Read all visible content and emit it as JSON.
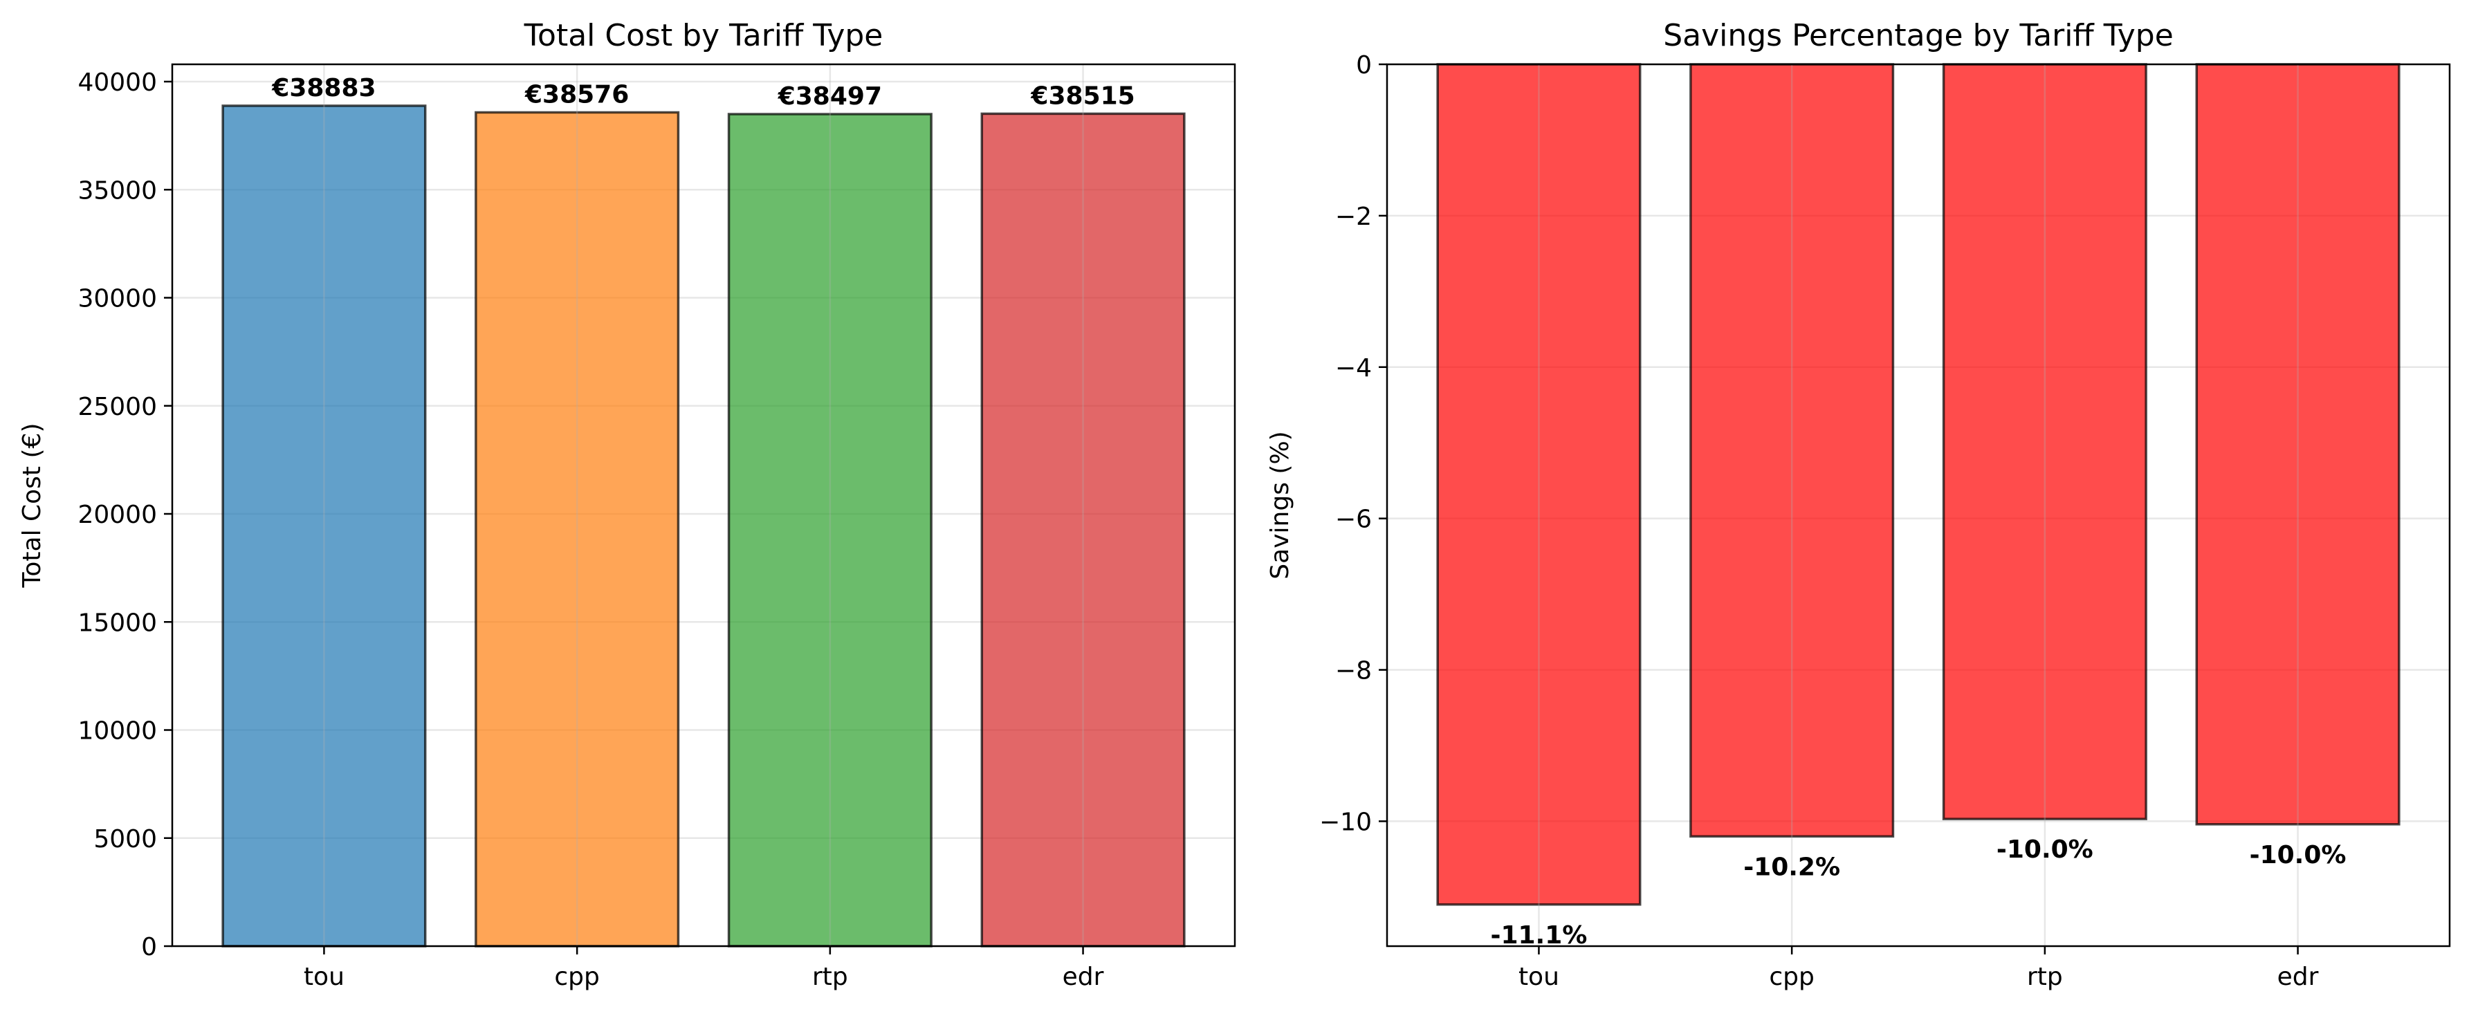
{
  "chart_data": [
    {
      "type": "bar",
      "title": "Total Cost by Tariff Type",
      "xlabel": "",
      "ylabel": "Total Cost (€)",
      "categories": [
        "tou",
        "cpp",
        "rtp",
        "edr"
      ],
      "values": [
        38883,
        38576,
        38497,
        38515
      ],
      "value_labels": [
        "€38883",
        "€38576",
        "€38497",
        "€38515"
      ],
      "colors": [
        "#1f77b4",
        "#ff7f0e",
        "#2ca02c",
        "#d62728"
      ],
      "bar_opacity": 0.7,
      "ylim": [
        0,
        40800
      ],
      "yticks": [
        0,
        5000,
        10000,
        15000,
        20000,
        25000,
        30000,
        35000,
        40000
      ],
      "ytick_labels": [
        "0",
        "5000",
        "10000",
        "15000",
        "20000",
        "25000",
        "30000",
        "35000",
        "40000"
      ],
      "grid": true
    },
    {
      "type": "bar",
      "title": "Savings Percentage by Tariff Type",
      "xlabel": "",
      "ylabel": "Savings (%)",
      "categories": [
        "tou",
        "cpp",
        "rtp",
        "edr"
      ],
      "values": [
        -11.1,
        -10.2,
        -10.0,
        -10.0
      ],
      "bar_extents": [
        -11.1,
        -10.2,
        -9.97,
        -10.04
      ],
      "value_labels": [
        "-11.1%",
        "-10.2%",
        "-10.0%",
        "-10.0%"
      ],
      "colors": [
        "#ff0000",
        "#ff0000",
        "#ff0000",
        "#ff0000"
      ],
      "bar_opacity": 0.7,
      "ylim": [
        -11.65,
        0
      ],
      "yticks": [
        0,
        -2,
        -4,
        -6,
        -8,
        -10
      ],
      "ytick_labels": [
        "0",
        "−2",
        "−4",
        "−6",
        "−8",
        "−10"
      ],
      "grid": true
    }
  ]
}
